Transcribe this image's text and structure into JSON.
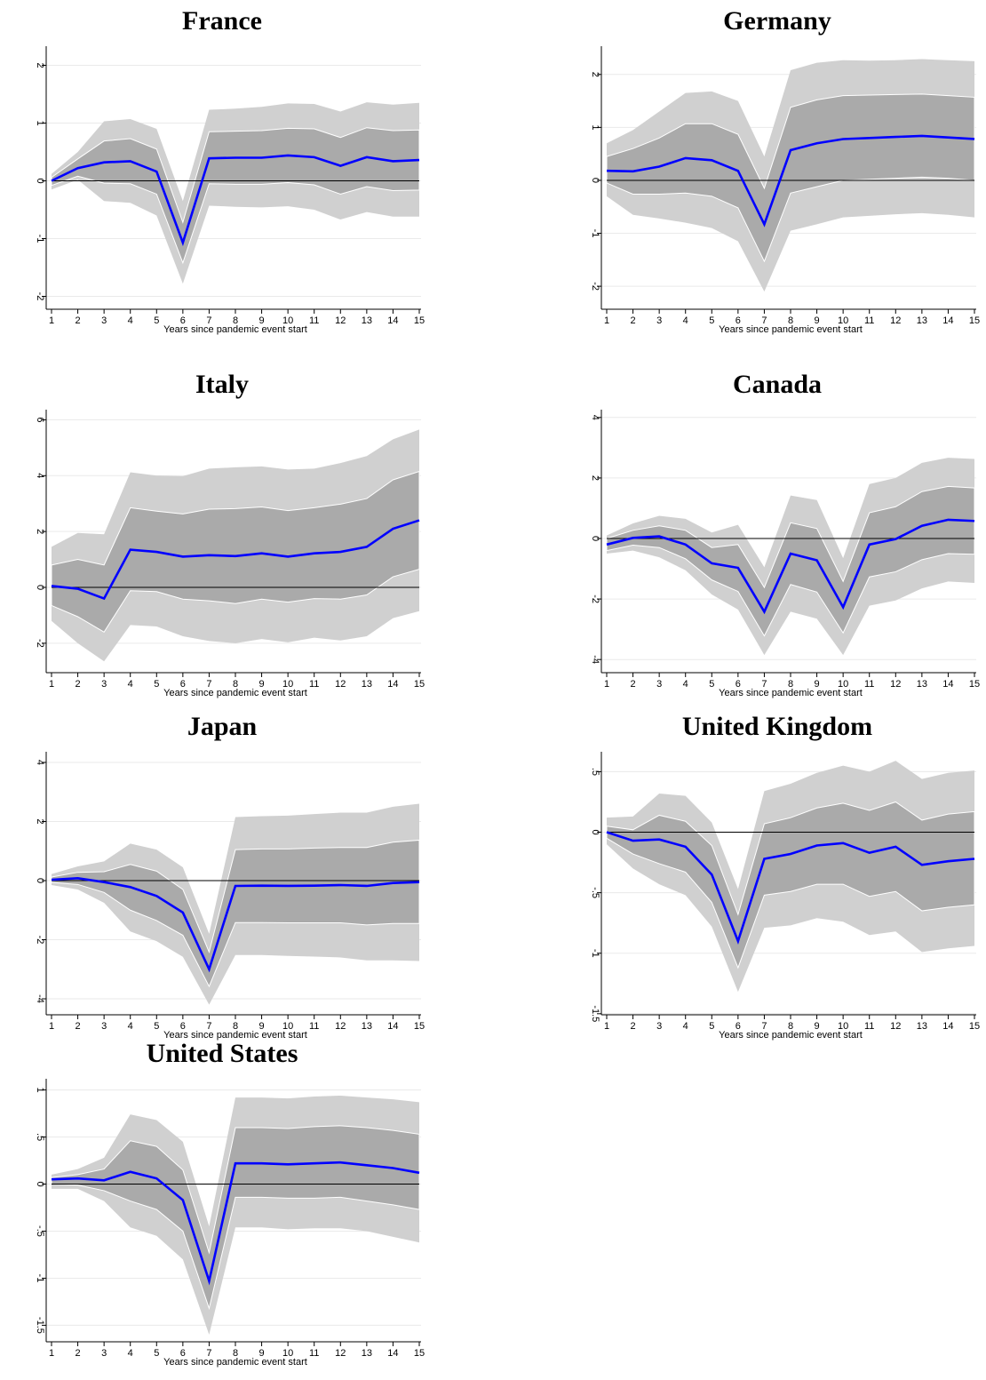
{
  "colors": {
    "outer_band": "#d0d0d0",
    "inner_band": "#aaaaaa",
    "band_edge": "#ffffff",
    "estimate_line": "#0000ff",
    "zero_line": "#000000",
    "grid": "#eaeaea"
  },
  "chart_data": [
    {
      "type": "line",
      "title": "France",
      "xlabel": "Years since pandemic event start",
      "ylabel": "",
      "x": [
        1,
        2,
        3,
        4,
        5,
        6,
        7,
        8,
        9,
        10,
        11,
        12,
        13,
        14,
        15
      ],
      "ylim": [
        -2.1,
        2.3
      ],
      "yticks": [
        -2,
        -1,
        0,
        1,
        2
      ],
      "ytick_labels": [
        "-2",
        "-1",
        "0",
        "1",
        "2"
      ],
      "grid": true,
      "series": [
        {
          "values": [
            0,
            0.22,
            0.32,
            0.34,
            0.16,
            -1.07,
            0.39,
            0.4,
            0.4,
            0.44,
            0.41,
            0.26,
            0.41,
            0.34,
            0.36
          ]
        }
      ],
      "bands": {
        "outer_upper": [
          0.12,
          0.5,
          1.03,
          1.07,
          0.9,
          -0.35,
          1.23,
          1.25,
          1.28,
          1.34,
          1.33,
          1.2,
          1.36,
          1.32,
          1.35
        ],
        "outer_lower": [
          -0.15,
          0.02,
          -0.35,
          -0.38,
          -0.6,
          -1.78,
          -0.43,
          -0.45,
          -0.46,
          -0.44,
          -0.5,
          -0.67,
          -0.54,
          -0.62,
          -0.62
        ],
        "inner_upper": [
          0.06,
          0.38,
          0.69,
          0.73,
          0.55,
          -0.72,
          0.85,
          0.86,
          0.87,
          0.91,
          0.9,
          0.75,
          0.92,
          0.87,
          0.88
        ],
        "inner_lower": [
          -0.08,
          0.08,
          -0.04,
          -0.05,
          -0.23,
          -1.42,
          -0.05,
          -0.06,
          -0.06,
          -0.03,
          -0.07,
          -0.23,
          -0.1,
          -0.17,
          -0.16
        ]
      }
    },
    {
      "type": "line",
      "title": "Germany",
      "xlabel": "Years since pandemic event start",
      "ylabel": "",
      "x": [
        1,
        2,
        3,
        4,
        5,
        6,
        7,
        8,
        9,
        10,
        11,
        12,
        13,
        14,
        15
      ],
      "ylim": [
        -2.3,
        2.5
      ],
      "yticks": [
        -2,
        -1,
        0,
        1,
        2
      ],
      "ytick_labels": [
        "-2",
        "-1",
        "0",
        "1",
        "2"
      ],
      "grid": true,
      "series": [
        {
          "values": [
            0.18,
            0.17,
            0.26,
            0.42,
            0.38,
            0.18,
            -0.83,
            0.57,
            0.7,
            0.78,
            0.8,
            0.82,
            0.84,
            0.81,
            0.78
          ]
        }
      ],
      "bands": {
        "outer_upper": [
          0.7,
          0.95,
          1.3,
          1.65,
          1.68,
          1.5,
          0.45,
          2.08,
          2.22,
          2.27,
          2.26,
          2.27,
          2.29,
          2.27,
          2.25
        ],
        "outer_lower": [
          -0.3,
          -0.65,
          -0.72,
          -0.8,
          -0.9,
          -1.15,
          -2.1,
          -0.95,
          -0.83,
          -0.7,
          -0.67,
          -0.64,
          -0.62,
          -0.65,
          -0.7
        ],
        "inner_upper": [
          0.45,
          0.6,
          0.8,
          1.07,
          1.07,
          0.87,
          -0.15,
          1.38,
          1.52,
          1.6,
          1.61,
          1.62,
          1.63,
          1.6,
          1.57
        ],
        "inner_lower": [
          -0.05,
          -0.26,
          -0.26,
          -0.24,
          -0.3,
          -0.52,
          -1.53,
          -0.24,
          -0.12,
          0,
          0.02,
          0.04,
          0.06,
          0.04,
          0
        ]
      }
    },
    {
      "type": "line",
      "title": "Italy",
      "xlabel": "Years since pandemic event start",
      "ylabel": "",
      "x": [
        1,
        2,
        3,
        4,
        5,
        6,
        7,
        8,
        9,
        10,
        11,
        12,
        13,
        14,
        15
      ],
      "ylim": [
        -2.8,
        6.3
      ],
      "yticks": [
        -2,
        0,
        2,
        4,
        6
      ],
      "ytick_labels": [
        "-2",
        "0",
        "2",
        "4",
        "6"
      ],
      "grid": true,
      "series": [
        {
          "values": [
            0.05,
            -0.05,
            -0.4,
            1.35,
            1.27,
            1.1,
            1.15,
            1.12,
            1.22,
            1.1,
            1.22,
            1.27,
            1.45,
            2.1,
            2.4
          ]
        }
      ],
      "bands": {
        "outer_upper": [
          1.45,
          1.95,
          1.9,
          4.12,
          4.0,
          3.98,
          4.25,
          4.3,
          4.33,
          4.22,
          4.25,
          4.45,
          4.7,
          5.3,
          5.65
        ],
        "outer_lower": [
          -1.2,
          -2.0,
          -2.65,
          -1.35,
          -1.4,
          -1.75,
          -1.92,
          -2.0,
          -1.85,
          -1.97,
          -1.8,
          -1.9,
          -1.75,
          -1.1,
          -0.85
        ],
        "inner_upper": [
          0.8,
          1.0,
          0.8,
          2.85,
          2.73,
          2.63,
          2.8,
          2.82,
          2.88,
          2.75,
          2.85,
          2.98,
          3.18,
          3.85,
          4.15
        ],
        "inner_lower": [
          -0.65,
          -1.05,
          -1.6,
          -0.12,
          -0.15,
          -0.42,
          -0.48,
          -0.58,
          -0.42,
          -0.53,
          -0.4,
          -0.42,
          -0.27,
          0.38,
          0.65
        ]
      }
    },
    {
      "type": "line",
      "title": "Canada",
      "xlabel": "Years since pandemic event start",
      "ylabel": "",
      "x": [
        1,
        2,
        3,
        4,
        5,
        6,
        7,
        8,
        9,
        10,
        11,
        12,
        13,
        14,
        15
      ],
      "ylim": [
        -4.2,
        4.2
      ],
      "yticks": [
        -4,
        -2,
        0,
        2,
        4
      ],
      "ytick_labels": [
        "-4",
        "-2",
        "0",
        "2",
        "4"
      ],
      "grid": true,
      "series": [
        {
          "values": [
            -0.2,
            0.02,
            0.07,
            -0.2,
            -0.82,
            -0.97,
            -2.42,
            -0.5,
            -0.72,
            -2.27,
            -0.2,
            -0.02,
            0.42,
            0.62,
            0.58
          ]
        }
      ],
      "bands": {
        "outer_upper": [
          0.1,
          0.5,
          0.75,
          0.65,
          0.2,
          0.45,
          -0.95,
          1.42,
          1.27,
          -0.65,
          1.8,
          2.0,
          2.5,
          2.67,
          2.63
        ],
        "outer_lower": [
          -0.5,
          -0.4,
          -0.62,
          -1.05,
          -1.85,
          -2.35,
          -3.85,
          -2.42,
          -2.65,
          -3.85,
          -2.22,
          -2.05,
          -1.65,
          -1.42,
          -1.47
        ],
        "inner_upper": [
          0.0,
          0.27,
          0.42,
          0.27,
          -0.3,
          -0.2,
          -1.62,
          0.52,
          0.33,
          -1.42,
          0.85,
          1.05,
          1.55,
          1.72,
          1.67
        ],
        "inner_lower": [
          -0.4,
          -0.22,
          -0.3,
          -0.67,
          -1.37,
          -1.75,
          -3.22,
          -1.52,
          -1.77,
          -3.12,
          -1.27,
          -1.1,
          -0.7,
          -0.5,
          -0.52
        ]
      }
    },
    {
      "type": "line",
      "title": "Japan",
      "xlabel": "Years since pandemic event start",
      "ylabel": "",
      "x": [
        1,
        2,
        3,
        4,
        5,
        6,
        7,
        8,
        9,
        10,
        11,
        12,
        13,
        14,
        15
      ],
      "ylim": [
        -4.3,
        4.3
      ],
      "yticks": [
        -4,
        -2,
        0,
        2,
        4
      ],
      "ytick_labels": [
        "-4",
        "-2",
        "0",
        "2",
        "4"
      ],
      "grid": true,
      "series": [
        {
          "values": [
            0.03,
            0.08,
            -0.05,
            -0.22,
            -0.52,
            -1.08,
            -3.0,
            -0.18,
            -0.17,
            -0.18,
            -0.17,
            -0.15,
            -0.18,
            -0.08,
            -0.05
          ]
        }
      ],
      "bands": {
        "outer_upper": [
          0.22,
          0.48,
          0.65,
          1.25,
          1.05,
          0.45,
          -1.8,
          2.15,
          2.18,
          2.2,
          2.25,
          2.3,
          2.3,
          2.5,
          2.6
        ],
        "outer_lower": [
          -0.15,
          -0.3,
          -0.75,
          -1.72,
          -2.05,
          -2.58,
          -4.2,
          -2.52,
          -2.52,
          -2.55,
          -2.57,
          -2.6,
          -2.7,
          -2.7,
          -2.72
        ],
        "inner_upper": [
          0.12,
          0.28,
          0.3,
          0.55,
          0.32,
          -0.3,
          -2.42,
          1.05,
          1.07,
          1.07,
          1.1,
          1.12,
          1.12,
          1.3,
          1.37
        ],
        "inner_lower": [
          -0.06,
          -0.13,
          -0.4,
          -1.0,
          -1.35,
          -1.85,
          -3.58,
          -1.42,
          -1.42,
          -1.43,
          -1.43,
          -1.43,
          -1.5,
          -1.45,
          -1.45
        ]
      }
    },
    {
      "type": "line",
      "title": "United Kingdom",
      "xlabel": "Years since pandemic event start",
      "ylabel": "",
      "x": [
        1,
        2,
        3,
        4,
        5,
        6,
        7,
        8,
        9,
        10,
        11,
        12,
        13,
        14,
        15
      ],
      "ylim": [
        -1.45,
        0.65
      ],
      "yticks": [
        -1.5,
        -1,
        -0.5,
        0,
        0.5
      ],
      "ytick_labels": [
        "-1.5",
        "-1",
        "-.5",
        "0",
        ".5"
      ],
      "grid": true,
      "series": [
        {
          "values": [
            0,
            -0.07,
            -0.06,
            -0.12,
            -0.35,
            -0.9,
            -0.22,
            -0.18,
            -0.11,
            -0.09,
            -0.17,
            -0.12,
            -0.27,
            -0.24,
            -0.22
          ]
        }
      ],
      "bands": {
        "outer_upper": [
          0.12,
          0.13,
          0.32,
          0.3,
          0.08,
          -0.47,
          0.34,
          0.4,
          0.49,
          0.55,
          0.5,
          0.59,
          0.44,
          0.49,
          0.51
        ],
        "outer_lower": [
          -0.1,
          -0.3,
          -0.43,
          -0.52,
          -0.78,
          -1.32,
          -0.79,
          -0.77,
          -0.71,
          -0.74,
          -0.85,
          -0.82,
          -0.99,
          -0.96,
          -0.94
        ],
        "inner_upper": [
          0.05,
          0.02,
          0.14,
          0.09,
          -0.11,
          -0.68,
          0.07,
          0.12,
          0.2,
          0.24,
          0.18,
          0.25,
          0.1,
          0.15,
          0.17
        ],
        "inner_lower": [
          -0.05,
          -0.18,
          -0.26,
          -0.33,
          -0.58,
          -1.12,
          -0.52,
          -0.49,
          -0.43,
          -0.43,
          -0.53,
          -0.49,
          -0.65,
          -0.62,
          -0.6
        ]
      }
    },
    {
      "type": "line",
      "title": "United States",
      "xlabel": "Years since pandemic event start",
      "ylabel": "",
      "x": [
        1,
        2,
        3,
        4,
        5,
        6,
        7,
        8,
        9,
        10,
        11,
        12,
        13,
        14,
        15
      ],
      "ylim": [
        -1.6,
        1.1
      ],
      "yticks": [
        -1.5,
        -1,
        -0.5,
        0,
        0.5,
        1
      ],
      "ytick_labels": [
        "-1.5",
        "-1",
        "-.5",
        "0",
        ".5",
        "1"
      ],
      "grid": true,
      "series": [
        {
          "values": [
            0.05,
            0.06,
            0.04,
            0.13,
            0.06,
            -0.17,
            -1.03,
            0.22,
            0.22,
            0.21,
            0.22,
            0.23,
            0.2,
            0.17,
            0.12
          ]
        }
      ],
      "bands": {
        "outer_upper": [
          0.1,
          0.16,
          0.28,
          0.74,
          0.68,
          0.45,
          -0.45,
          0.92,
          0.92,
          0.91,
          0.93,
          0.94,
          0.92,
          0.9,
          0.87
        ],
        "outer_lower": [
          -0.05,
          -0.05,
          -0.18,
          -0.46,
          -0.55,
          -0.8,
          -1.6,
          -0.46,
          -0.46,
          -0.48,
          -0.47,
          -0.47,
          -0.5,
          -0.56,
          -0.62
        ],
        "inner_upper": [
          0.07,
          0.1,
          0.16,
          0.46,
          0.4,
          0.15,
          -0.73,
          0.6,
          0.6,
          0.59,
          0.61,
          0.62,
          0.6,
          0.57,
          0.53
        ],
        "inner_lower": [
          0.0,
          -0.01,
          -0.07,
          -0.18,
          -0.27,
          -0.5,
          -1.32,
          -0.14,
          -0.14,
          -0.15,
          -0.15,
          -0.14,
          -0.18,
          -0.22,
          -0.27
        ]
      }
    }
  ]
}
